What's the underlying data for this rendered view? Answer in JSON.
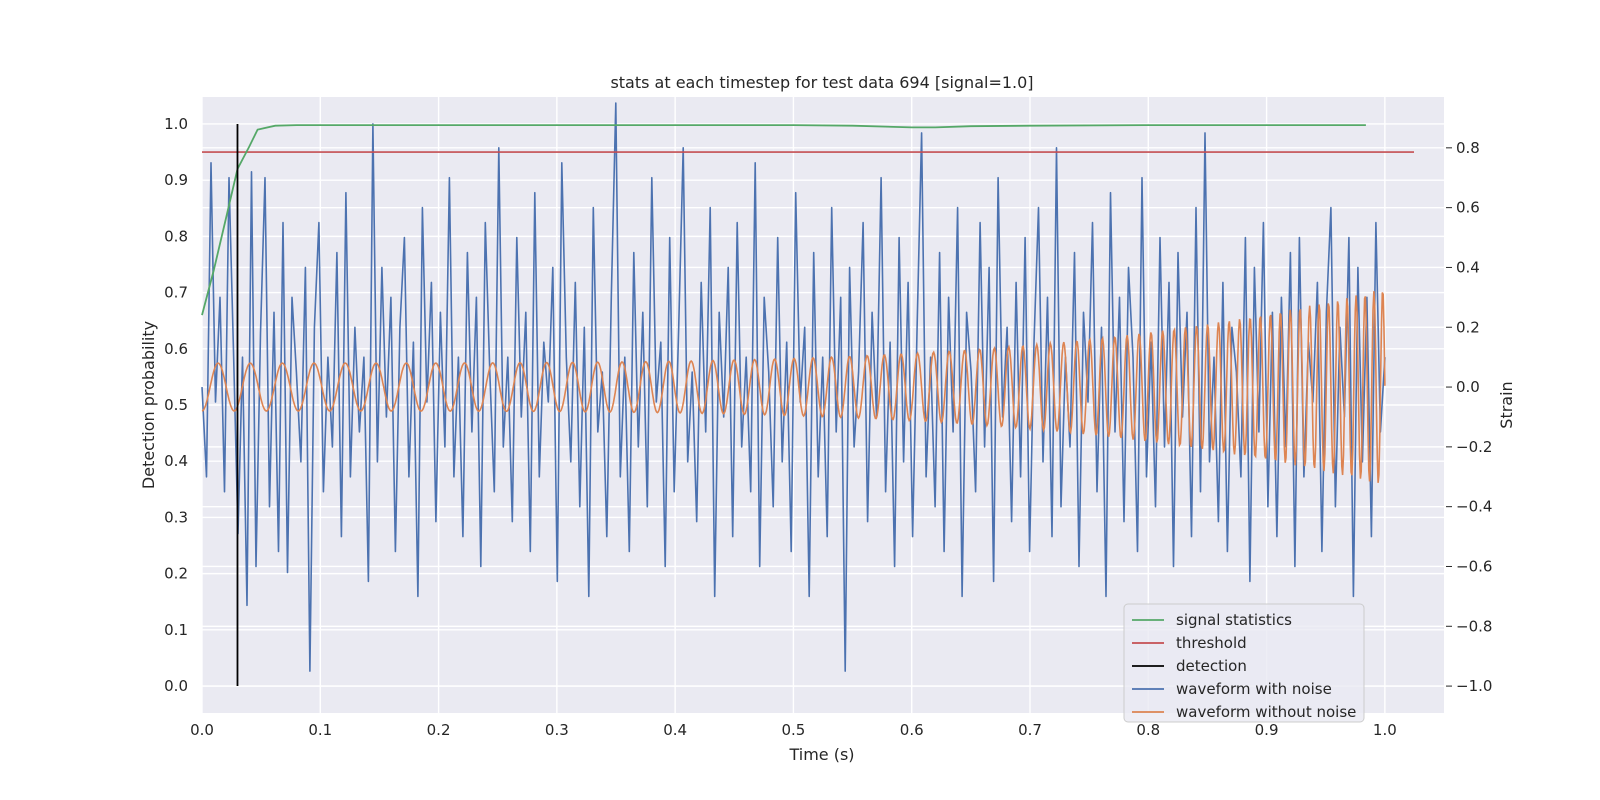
{
  "chart_data": {
    "type": "line",
    "title": "stats at each timestep for test data 694 [signal=1.0]",
    "xlabel": "Time (s)",
    "ylabel": "Detection probability",
    "y2label": "Strain",
    "xlim": [
      0.0,
      1.05
    ],
    "ylim": [
      -0.048,
      1.048
    ],
    "y2lim": [
      -1.09,
      0.97
    ],
    "xticks": [
      0.0,
      0.1,
      0.2,
      0.3,
      0.4,
      0.5,
      0.6,
      0.7,
      0.8,
      0.9,
      1.0
    ],
    "xtick_labels": [
      "0.0",
      "0.1",
      "0.2",
      "0.3",
      "0.4",
      "0.5",
      "0.6",
      "0.7",
      "0.8",
      "0.9",
      "1.0"
    ],
    "yticks": [
      0.0,
      0.1,
      0.2,
      0.3,
      0.4,
      0.5,
      0.6,
      0.7,
      0.8,
      0.9,
      1.0
    ],
    "ytick_labels": [
      "0.0",
      "0.1",
      "0.2",
      "0.3",
      "0.4",
      "0.5",
      "0.6",
      "0.7",
      "0.8",
      "0.9",
      "1.0"
    ],
    "y2ticks": [
      -1.0,
      -0.8,
      -0.6,
      -0.4,
      -0.2,
      0.0,
      0.2,
      0.4,
      0.6,
      0.8
    ],
    "y2tick_labels": [
      "−1.0",
      "−0.8",
      "−0.6",
      "−0.4",
      "−0.2",
      "0.0",
      "0.2",
      "0.4",
      "0.6",
      "0.8"
    ],
    "grid": true,
    "legend_position": "lower-right",
    "colors": {
      "background": "#eaeaf2",
      "grid": "#ffffff",
      "signal_statistics": "#55a868",
      "threshold": "#c44e52",
      "detection": "#000000",
      "waveform_with_noise": "#4c72b0",
      "waveform_without_noise": "#dd8452"
    },
    "legend": [
      {
        "key": "signal_statistics",
        "label": "signal statistics"
      },
      {
        "key": "threshold",
        "label": "threshold"
      },
      {
        "key": "detection",
        "label": "detection"
      },
      {
        "key": "waveform_with_noise",
        "label": "waveform with noise"
      },
      {
        "key": "waveform_without_noise",
        "label": "waveform without noise"
      }
    ],
    "series": {
      "signal_statistics": {
        "axis": "left",
        "x": [
          0.0,
          0.01,
          0.02,
          0.03,
          0.04,
          0.047,
          0.062,
          0.08,
          0.1,
          0.2,
          0.3,
          0.4,
          0.5,
          0.55,
          0.6,
          0.62,
          0.65,
          0.7,
          0.8,
          0.9,
          0.984
        ],
        "y": [
          0.66,
          0.74,
          0.83,
          0.92,
          0.96,
          0.99,
          0.997,
          0.998,
          0.998,
          0.998,
          0.998,
          0.998,
          0.998,
          0.997,
          0.994,
          0.994,
          0.996,
          0.997,
          0.998,
          0.998,
          0.998
        ]
      },
      "threshold": {
        "axis": "left",
        "y": 0.95,
        "x": [
          0.0,
          1.05
        ]
      },
      "detection": {
        "axis": "left",
        "x": 0.03,
        "y": [
          0.0,
          1.0
        ]
      },
      "waveform_with_noise": {
        "axis": "right",
        "x_start": 0.0,
        "x_end": 1.0,
        "y": [
          0.0,
          -0.3,
          0.75,
          -0.05,
          0.3,
          -0.35,
          0.7,
          0.12,
          -0.49,
          0.1,
          -0.73,
          0.72,
          -0.6,
          0.18,
          0.7,
          -0.4,
          0.25,
          -0.55,
          0.55,
          -0.62,
          0.3,
          0.05,
          -0.25,
          0.4,
          -0.95,
          0.2,
          0.55,
          -0.35,
          0.1,
          -0.2,
          0.45,
          -0.5,
          0.65,
          -0.3,
          0.2,
          -0.15,
          0.1,
          -0.65,
          0.88,
          -0.25,
          0.4,
          -0.1,
          0.3,
          -0.55,
          0.2,
          0.5,
          -0.3,
          0.15,
          -0.7,
          0.6,
          -0.05,
          0.35,
          -0.45,
          0.25,
          -0.2,
          0.7,
          -0.3,
          0.1,
          -0.5,
          0.45,
          -0.15,
          0.3,
          -0.6,
          0.55,
          0.05,
          -0.35,
          0.8,
          -0.2,
          0.1,
          -0.45,
          0.5,
          -0.1,
          0.25,
          -0.55,
          0.65,
          -0.3,
          0.15,
          -0.05,
          0.4,
          -0.65,
          0.75,
          0.1,
          -0.25,
          0.35,
          -0.4,
          0.2,
          -0.7,
          0.6,
          -0.15,
          0.05,
          -0.5,
          0.3,
          0.95,
          -0.3,
          0.1,
          -0.55,
          0.45,
          -0.2,
          0.25,
          -0.4,
          0.7,
          -0.05,
          0.15,
          -0.6,
          0.5,
          -0.35,
          0.2,
          0.8,
          -0.25,
          0.05,
          -0.45,
          0.35,
          -0.15,
          0.6,
          -0.7,
          0.25,
          -0.1,
          0.4,
          -0.5,
          0.55,
          -0.2,
          0.1,
          -0.35,
          0.75,
          -0.6,
          0.3,
          0.05,
          -0.4,
          0.5,
          -0.25,
          0.15,
          -0.55,
          0.65,
          -0.05,
          0.2,
          -0.7,
          0.45,
          -0.3,
          0.1,
          -0.5,
          0.6,
          -0.15,
          0.3,
          -0.95,
          0.4,
          -0.2,
          0.05,
          0.55,
          -0.45,
          0.25,
          -0.1,
          0.7,
          -0.35,
          0.15,
          -0.6,
          0.5,
          -0.25,
          0.35,
          -0.5,
          0.2,
          0.85,
          -0.3,
          0.1,
          -0.4,
          0.45,
          -0.55,
          0.3,
          -0.15,
          0.6,
          -0.7,
          0.25,
          0.05,
          -0.35,
          0.55,
          -0.2,
          0.4,
          -0.65,
          0.7,
          -0.1,
          0.2,
          -0.45,
          0.35,
          -0.3,
          0.5,
          -0.55,
          0.15,
          0.6,
          -0.25,
          0.3,
          -0.5,
          0.8,
          -0.4,
          0.1,
          -0.2,
          0.45,
          -0.6,
          0.25,
          -0.05,
          0.55,
          -0.35,
          0.2,
          -0.7,
          0.65,
          -0.15,
          0.3,
          -0.45,
          0.4,
          0.1,
          -0.55,
          0.7,
          -0.3,
          0.15,
          -0.4,
          0.5,
          -0.2,
          0.35,
          -0.6,
          0.45,
          -0.1,
          0.25,
          -0.5,
          0.6,
          -0.35,
          0.85,
          -0.25,
          0.1,
          -0.45,
          0.35,
          -0.55,
          0.2,
          0.05,
          -0.3,
          0.5,
          -0.65,
          0.4,
          -0.15,
          0.55,
          -0.4,
          0.25,
          -0.5,
          0.3,
          -0.2,
          0.45,
          -0.6,
          0.5,
          -0.3,
          0.15,
          -0.05,
          0.35,
          -0.55,
          0.25,
          0.6,
          -0.4,
          0.2,
          -0.1,
          0.5,
          -0.7,
          0.4,
          -0.25,
          0.3,
          -0.5,
          0.55,
          -0.15,
          0.1
        ]
      },
      "waveform_without_noise": {
        "axis": "right",
        "x_start": 0.0,
        "x_end": 1.0,
        "note_cycles": 47,
        "amplitude_start": 0.08,
        "amplitude_end": 0.33
      }
    }
  }
}
